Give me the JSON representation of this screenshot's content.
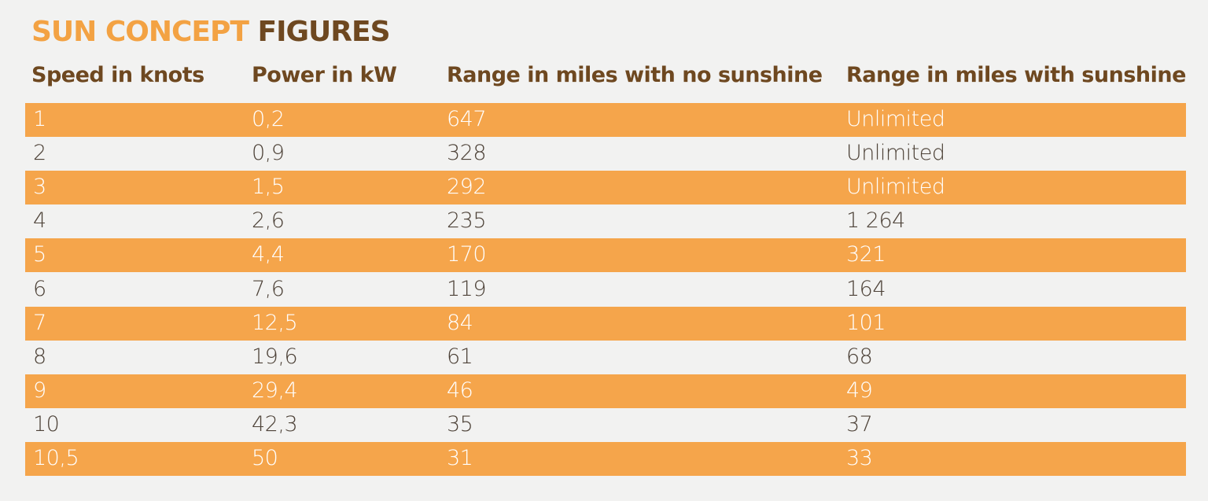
{
  "title": {
    "part1": "SUN CONCEPT",
    "part2": "FIGURES"
  },
  "table": {
    "header": [
      "Speed in knots",
      "Power in kW",
      "Range in miles with no sunshine",
      "Range in miles with sunshine"
    ],
    "rows": [
      [
        "1",
        "0,2",
        "647",
        "Unlimited"
      ],
      [
        "2",
        "0,9",
        "328",
        "Unlimited"
      ],
      [
        "3",
        "1,5",
        "292",
        "Unlimited"
      ],
      [
        "4",
        "2,6",
        "235",
        "1 264"
      ],
      [
        "5",
        "4,4",
        "170",
        "321"
      ],
      [
        "6",
        "7,6",
        "119",
        "164"
      ],
      [
        "7",
        "12,5",
        "84",
        "101"
      ],
      [
        "8",
        "19,6",
        "61",
        "68"
      ],
      [
        "9",
        "29,4",
        "46",
        "49"
      ],
      [
        "10",
        "42,3",
        "35",
        "37"
      ],
      [
        "10,5",
        "50",
        "31",
        "33"
      ]
    ]
  }
}
